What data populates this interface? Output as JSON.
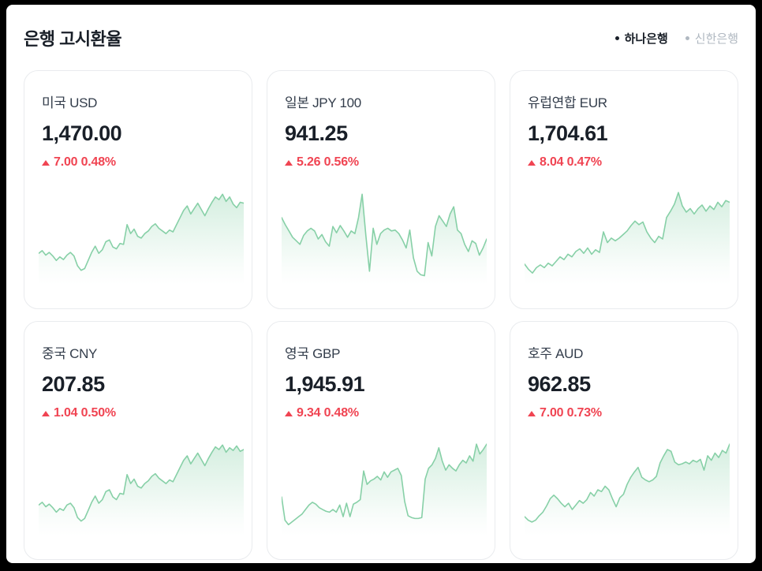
{
  "header": {
    "title": "은행 고시환율",
    "legend": [
      {
        "id": "hana",
        "label": "하나은행",
        "active": true
      },
      {
        "id": "shinhan",
        "label": "신한은행",
        "active": false
      }
    ]
  },
  "colors": {
    "up_red": "#f04452",
    "spark_line": "#87d0a7",
    "value_text": "#191f28",
    "name_text": "#333d4b",
    "inactive_legend": "#b0b8c1",
    "card_border": "#e9ebee"
  },
  "cards": [
    {
      "name": "미국 USD",
      "value": "1,470.00",
      "change": "7.00 0.48%",
      "direction": "up"
    },
    {
      "name": "일본 JPY 100",
      "value": "941.25",
      "change": "5.26 0.56%",
      "direction": "up"
    },
    {
      "name": "유럽연합 EUR",
      "value": "1,704.61",
      "change": "8.04 0.47%",
      "direction": "up"
    },
    {
      "name": "중국 CNY",
      "value": "207.85",
      "change": "1.04 0.50%",
      "direction": "up"
    },
    {
      "name": "영국 GBP",
      "value": "1,945.91",
      "change": "9.34 0.48%",
      "direction": "up"
    },
    {
      "name": "호주 AUD",
      "value": "962.85",
      "change": "7.00 0.73%",
      "direction": "up"
    }
  ],
  "chart_data": [
    {
      "type": "area",
      "title": "미국 USD",
      "legend": "하나은행",
      "axes": "none (sparkline)",
      "ylim": [
        0,
        1
      ],
      "values": [
        0.3,
        0.33,
        0.28,
        0.31,
        0.27,
        0.22,
        0.26,
        0.23,
        0.28,
        0.31,
        0.27,
        0.16,
        0.11,
        0.13,
        0.22,
        0.31,
        0.38,
        0.3,
        0.34,
        0.43,
        0.45,
        0.37,
        0.35,
        0.41,
        0.4,
        0.62,
        0.52,
        0.57,
        0.49,
        0.47,
        0.52,
        0.55,
        0.6,
        0.63,
        0.58,
        0.55,
        0.52,
        0.56,
        0.54,
        0.62,
        0.7,
        0.78,
        0.83,
        0.74,
        0.8,
        0.86,
        0.79,
        0.72,
        0.8,
        0.87,
        0.93,
        0.9,
        0.96,
        0.88,
        0.93,
        0.85,
        0.81,
        0.87,
        0.86
      ]
    },
    {
      "type": "area",
      "title": "일본 JPY 100",
      "legend": "하나은행",
      "axes": "none (sparkline)",
      "ylim": [
        0,
        1
      ],
      "values": [
        0.7,
        0.62,
        0.55,
        0.48,
        0.44,
        0.4,
        0.5,
        0.55,
        0.58,
        0.55,
        0.46,
        0.51,
        0.43,
        0.38,
        0.6,
        0.53,
        0.61,
        0.55,
        0.48,
        0.55,
        0.52,
        0.7,
        0.96,
        0.5,
        0.1,
        0.58,
        0.4,
        0.52,
        0.56,
        0.58,
        0.55,
        0.56,
        0.52,
        0.45,
        0.36,
        0.56,
        0.25,
        0.1,
        0.06,
        0.05,
        0.42,
        0.27,
        0.6,
        0.72,
        0.66,
        0.6,
        0.74,
        0.82,
        0.56,
        0.52,
        0.4,
        0.32,
        0.44,
        0.41,
        0.28,
        0.36,
        0.46
      ]
    },
    {
      "type": "area",
      "title": "유럽연합 EUR",
      "legend": "하나은행",
      "axes": "none (sparkline)",
      "ylim": [
        0,
        1
      ],
      "values": [
        0.18,
        0.12,
        0.08,
        0.14,
        0.17,
        0.14,
        0.19,
        0.16,
        0.21,
        0.26,
        0.23,
        0.29,
        0.26,
        0.32,
        0.35,
        0.3,
        0.36,
        0.29,
        0.34,
        0.31,
        0.54,
        0.42,
        0.47,
        0.44,
        0.47,
        0.51,
        0.55,
        0.61,
        0.66,
        0.62,
        0.65,
        0.54,
        0.47,
        0.42,
        0.49,
        0.46,
        0.7,
        0.77,
        0.85,
        0.98,
        0.83,
        0.76,
        0.8,
        0.74,
        0.8,
        0.84,
        0.77,
        0.83,
        0.79,
        0.87,
        0.82,
        0.89,
        0.87
      ]
    },
    {
      "type": "area",
      "title": "중국 CNY",
      "legend": "하나은행",
      "axes": "none (sparkline)",
      "ylim": [
        0,
        1
      ],
      "values": [
        0.29,
        0.32,
        0.27,
        0.3,
        0.26,
        0.21,
        0.25,
        0.23,
        0.29,
        0.31,
        0.26,
        0.15,
        0.11,
        0.14,
        0.23,
        0.32,
        0.39,
        0.31,
        0.35,
        0.44,
        0.46,
        0.38,
        0.35,
        0.42,
        0.41,
        0.63,
        0.53,
        0.58,
        0.5,
        0.48,
        0.53,
        0.56,
        0.61,
        0.64,
        0.59,
        0.56,
        0.53,
        0.57,
        0.55,
        0.63,
        0.71,
        0.79,
        0.84,
        0.75,
        0.81,
        0.87,
        0.8,
        0.73,
        0.81,
        0.88,
        0.94,
        0.91,
        0.96,
        0.88,
        0.93,
        0.9,
        0.95,
        0.89,
        0.91
      ]
    },
    {
      "type": "area",
      "title": "영국 GBP",
      "legend": "하나은행",
      "axes": "none (sparkline)",
      "ylim": [
        0,
        1
      ],
      "values": [
        0.38,
        0.12,
        0.07,
        0.1,
        0.13,
        0.16,
        0.19,
        0.24,
        0.29,
        0.32,
        0.3,
        0.26,
        0.24,
        0.22,
        0.21,
        0.24,
        0.21,
        0.29,
        0.16,
        0.31,
        0.16,
        0.3,
        0.32,
        0.35,
        0.67,
        0.52,
        0.56,
        0.58,
        0.61,
        0.57,
        0.66,
        0.6,
        0.66,
        0.68,
        0.7,
        0.62,
        0.33,
        0.17,
        0.15,
        0.14,
        0.14,
        0.15,
        0.58,
        0.7,
        0.74,
        0.81,
        0.93,
        0.78,
        0.68,
        0.74,
        0.7,
        0.67,
        0.74,
        0.79,
        0.76,
        0.84,
        0.78,
        0.97,
        0.86,
        0.91,
        0.97
      ]
    },
    {
      "type": "area",
      "title": "호주 AUD",
      "legend": "하나은행",
      "axes": "none (sparkline)",
      "ylim": [
        0,
        1
      ],
      "values": [
        0.16,
        0.12,
        0.1,
        0.12,
        0.17,
        0.21,
        0.28,
        0.36,
        0.4,
        0.36,
        0.31,
        0.27,
        0.31,
        0.24,
        0.29,
        0.34,
        0.31,
        0.35,
        0.43,
        0.39,
        0.46,
        0.44,
        0.5,
        0.46,
        0.36,
        0.27,
        0.37,
        0.41,
        0.52,
        0.6,
        0.66,
        0.71,
        0.6,
        0.57,
        0.55,
        0.57,
        0.61,
        0.76,
        0.84,
        0.91,
        0.89,
        0.77,
        0.74,
        0.75,
        0.77,
        0.75,
        0.79,
        0.77,
        0.8,
        0.68,
        0.84,
        0.79,
        0.87,
        0.82,
        0.9,
        0.87,
        0.97
      ]
    }
  ]
}
